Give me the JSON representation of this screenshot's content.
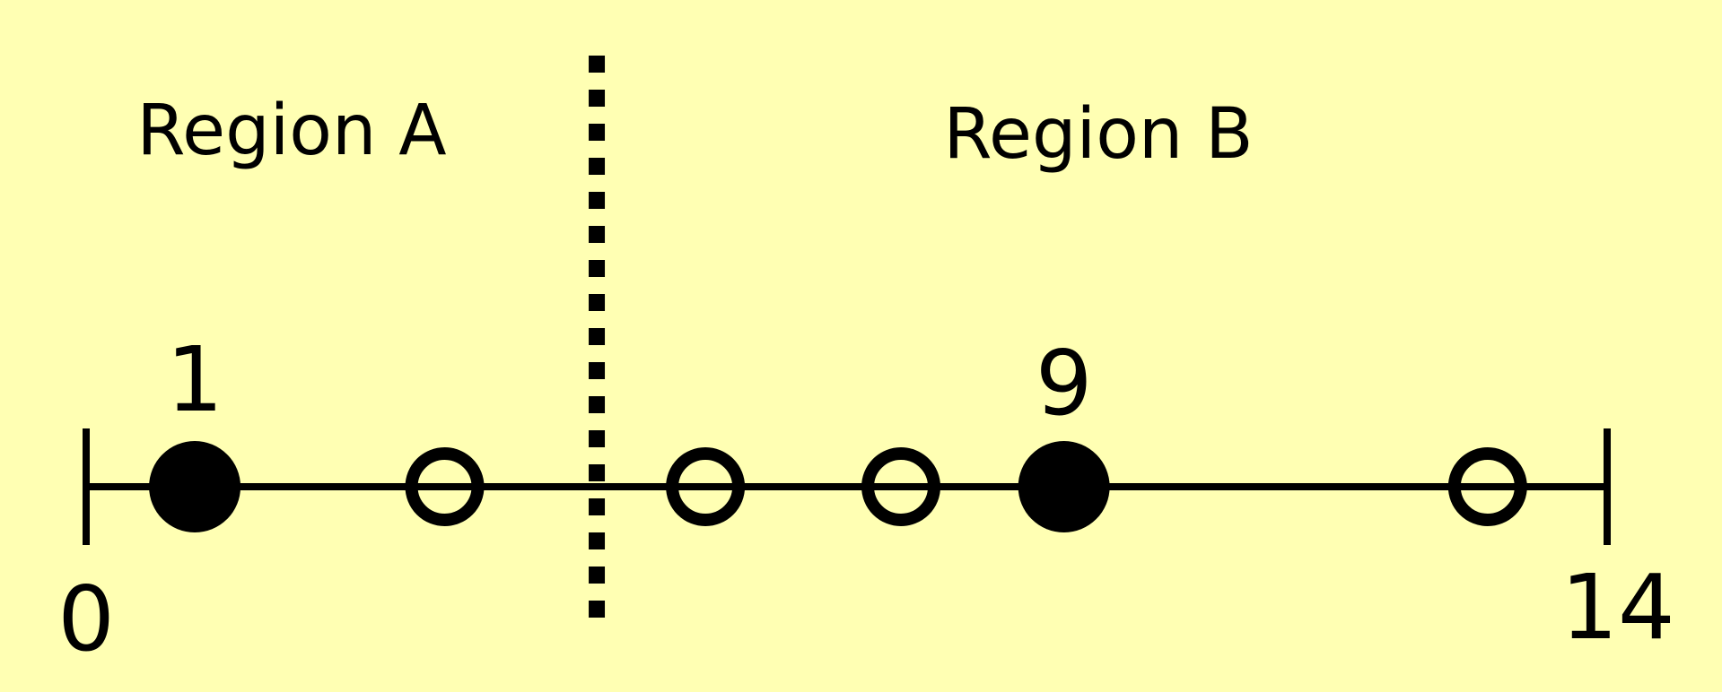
{
  "diagram": {
    "range": [
      0,
      14
    ],
    "end_labels": {
      "min": "0",
      "max": "14"
    },
    "divider_position": 4.7,
    "regions": [
      {
        "id": "a",
        "label": "Region A"
      },
      {
        "id": "b",
        "label": "Region B"
      }
    ],
    "points": [
      {
        "value": 1,
        "filled": true,
        "label": "1"
      },
      {
        "value": 3.3,
        "filled": false,
        "label": ""
      },
      {
        "value": 5.7,
        "filled": false,
        "label": ""
      },
      {
        "value": 7.5,
        "filled": false,
        "label": ""
      },
      {
        "value": 9,
        "filled": true,
        "label": "9"
      },
      {
        "value": 12.9,
        "filled": false,
        "label": ""
      }
    ],
    "colors": {
      "background": "#ffffb3",
      "ink": "#000000"
    }
  }
}
